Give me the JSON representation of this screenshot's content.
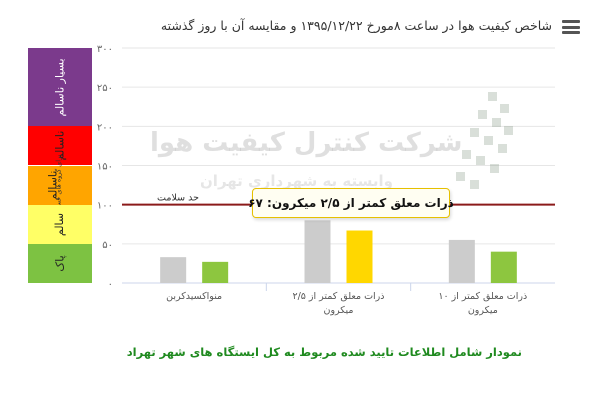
{
  "title": "شاخص کیفیت هوا در ساعت ۸مورخ ۱۳۹۵/۱۲/۲۲ و مقایسه آن با روز گذشته",
  "bands": [
    {
      "label": "بسیار ناسالم",
      "note": "",
      "color": "#7b3a8c",
      "from": 200,
      "to": 300
    },
    {
      "label": "ناسالم",
      "note": "",
      "color": "#ff0000",
      "from": 150,
      "to": 200
    },
    {
      "label": "ناسالم",
      "note": "برای گروه های حساس",
      "color": "#ffa500",
      "from": 100,
      "to": 150
    },
    {
      "label": "سالم",
      "note": "",
      "color": "#ffff66",
      "from": 50,
      "to": 100
    },
    {
      "label": "پاک",
      "note": "",
      "color": "#7dc242",
      "from": 0,
      "to": 50
    }
  ],
  "watermark": {
    "line1": "شرکت کنترل کیفیت هوا",
    "line2": "وابسته به شهرداری تهران"
  },
  "tooltip": "ذرات معلق کمتر از ۲/۵ میکرون: ۶۷",
  "footnote": "نمودار شامل اطلاعات تایید شده مربوط به کل ایستگاه های شهر تهراد",
  "chart_data": {
    "type": "bar",
    "ylim": [
      0,
      300
    ],
    "yticks": [
      0,
      50,
      100,
      150,
      200,
      250,
      300
    ],
    "ytick_labels": [
      "۰",
      "۵۰",
      "۱۰۰",
      "۱۵۰",
      "۲۰۰",
      "۲۵۰",
      "۳۰۰"
    ],
    "categories": [
      {
        "label": "منواکسیدکربن"
      },
      {
        "label": "ذرات معلق کمتر از ۲/۵ میکرون"
      },
      {
        "label": "ذرات معلق کمتر از ۱۰ میکرون"
      }
    ],
    "series": [
      {
        "color": "#cccccc",
        "values": [
          33,
          80,
          55
        ]
      },
      {
        "color": "#8dc63f",
        "values": [
          27,
          67,
          40
        ]
      }
    ],
    "highlight": {
      "series": 1,
      "index": 1,
      "color": "#ffd700"
    },
    "reference_line": {
      "value": 100,
      "label": "حد سلامت",
      "color": "#8b1a1a"
    },
    "grid": true,
    "legend": "none"
  }
}
